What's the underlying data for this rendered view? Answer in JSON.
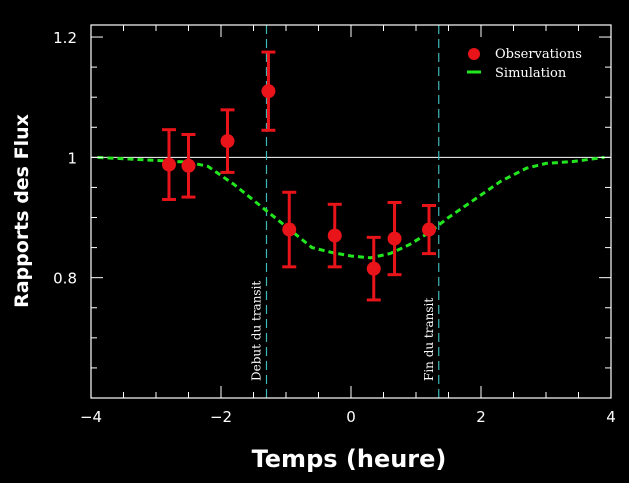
{
  "colors": {
    "background": "#000000",
    "axes": "#ffffff",
    "observations": "#e8141a",
    "simulation": "#22e61e",
    "transit_lines": "#3fb8b8",
    "reference_line": "#ffffff"
  },
  "chart_data": {
    "type": "scatter",
    "xlabel": "Temps (heure)",
    "ylabel": "Rapports des Flux",
    "xlim": [
      -4,
      4
    ],
    "ylim": [
      0.6,
      1.22
    ],
    "x_ticks": [
      {
        "value": -4,
        "label": "−4"
      },
      {
        "value": -2,
        "label": "−2"
      },
      {
        "value": 0,
        "label": "0"
      },
      {
        "value": 2,
        "label": "2"
      },
      {
        "value": 4,
        "label": "4"
      }
    ],
    "y_ticks": [
      {
        "value": 0.8,
        "label": "0.8"
      },
      {
        "value": 1.0,
        "label": "1"
      },
      {
        "value": 1.2,
        "label": "1.2"
      }
    ],
    "reference_y": 1.0,
    "legend_position": "top-right",
    "legend": {
      "observations": "Observations",
      "simulation": "Simulation"
    },
    "series": [
      {
        "name": "Observations",
        "kind": "points-with-errorbars",
        "points": [
          {
            "x": -2.8,
            "y": 0.988,
            "err": 0.058
          },
          {
            "x": -2.5,
            "y": 0.986,
            "err": 0.052
          },
          {
            "x": -1.9,
            "y": 1.027,
            "err": 0.052
          },
          {
            "x": -1.27,
            "y": 1.11,
            "err": 0.065
          },
          {
            "x": -0.95,
            "y": 0.88,
            "err": 0.062
          },
          {
            "x": -0.25,
            "y": 0.87,
            "err": 0.052
          },
          {
            "x": 0.35,
            "y": 0.815,
            "err": 0.052
          },
          {
            "x": 0.67,
            "y": 0.865,
            "err": 0.06
          },
          {
            "x": 1.2,
            "y": 0.88,
            "err": 0.04
          }
        ]
      },
      {
        "name": "Simulation",
        "kind": "dashed-line",
        "x": [
          -3.9,
          -3.0,
          -2.5,
          -2.2,
          -1.8,
          -1.4,
          -1.0,
          -0.6,
          -0.3,
          0.0,
          0.3,
          0.6,
          0.9,
          1.2,
          1.5,
          1.9,
          2.3,
          2.7,
          3.0,
          3.4,
          3.9
        ],
        "y": [
          1.0,
          0.995,
          0.992,
          0.985,
          0.955,
          0.92,
          0.885,
          0.85,
          0.842,
          0.836,
          0.833,
          0.84,
          0.855,
          0.875,
          0.9,
          0.93,
          0.96,
          0.982,
          0.99,
          0.993,
          1.0
        ]
      }
    ],
    "annotations": [
      {
        "x": -1.3,
        "text": "Debut du transit"
      },
      {
        "x": 1.35,
        "text": "Fin du transit"
      }
    ]
  }
}
